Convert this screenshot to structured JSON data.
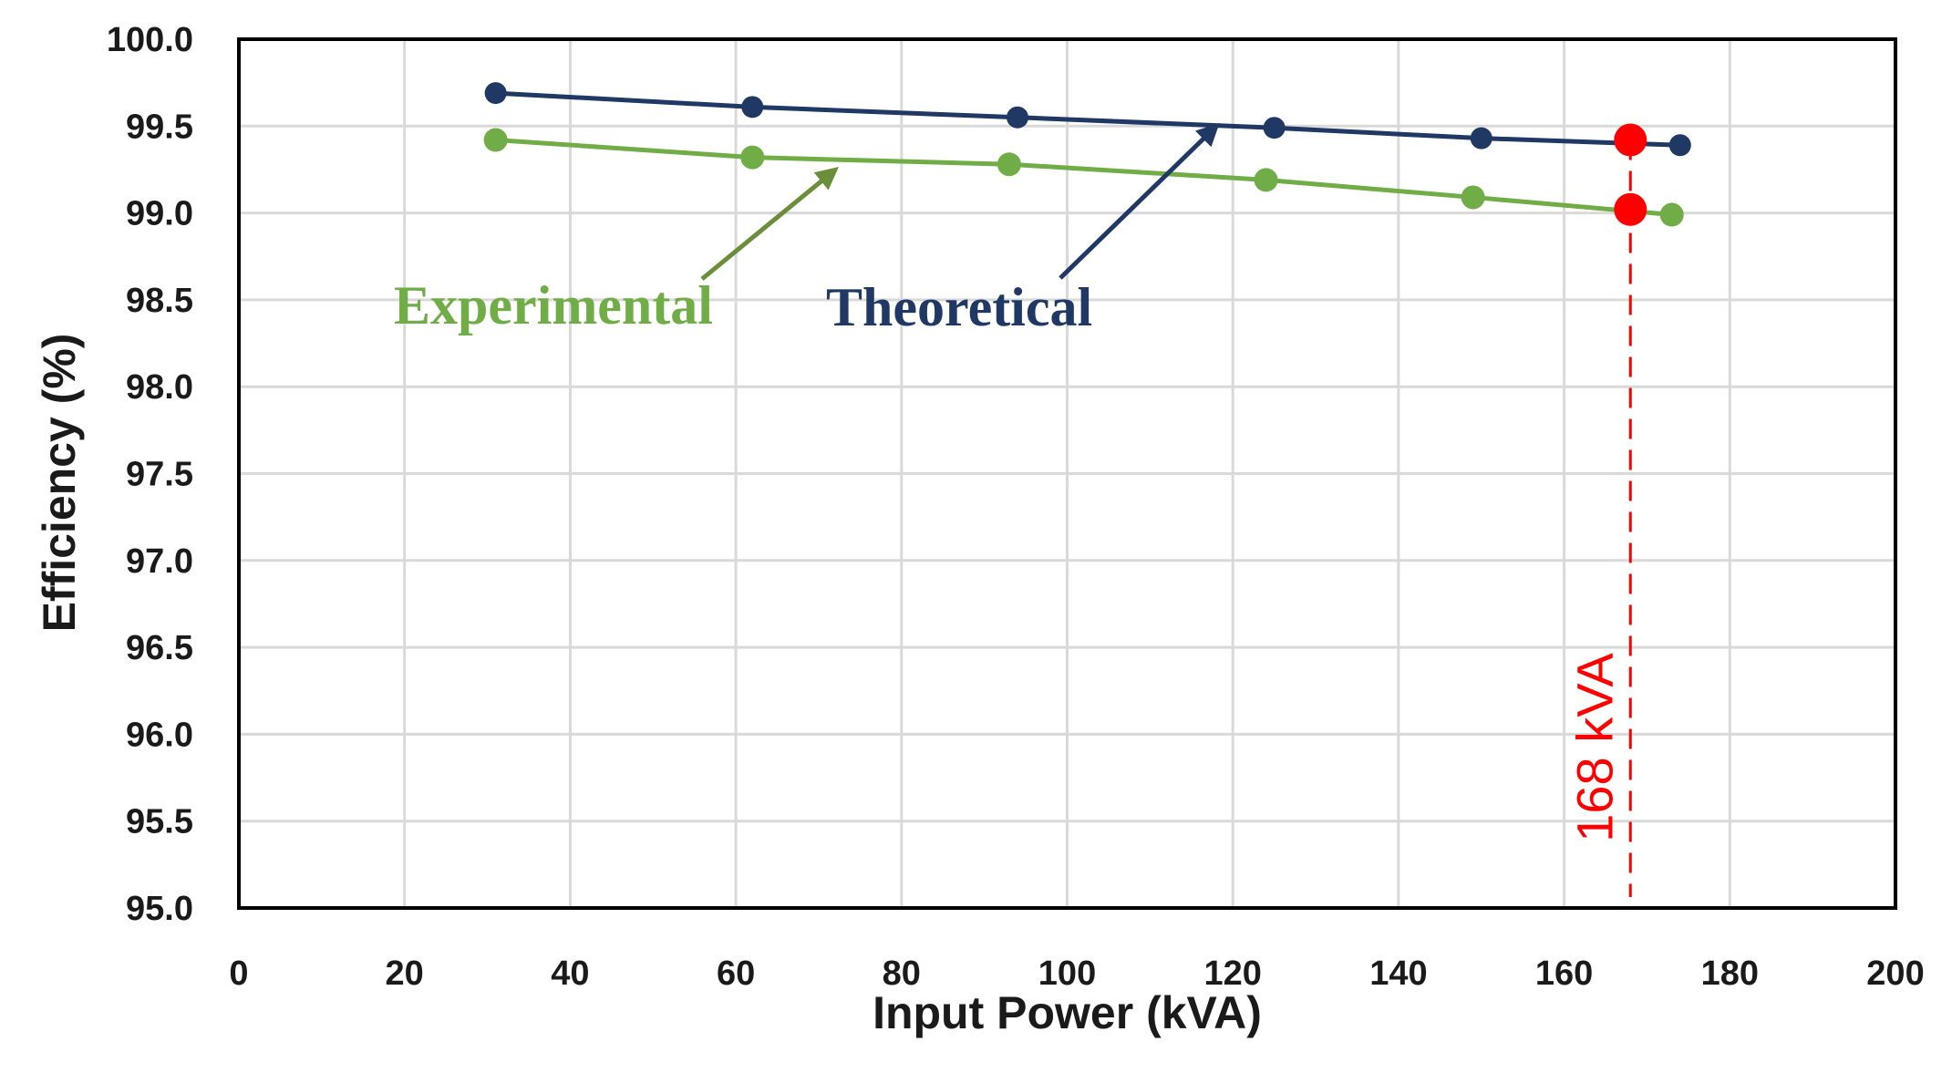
{
  "chart_data": {
    "type": "line",
    "title": "",
    "xlabel": "Input Power (kVA)",
    "ylabel": "Efficiency (%)",
    "xlim": [
      0,
      200
    ],
    "ylim": [
      95.0,
      100.0
    ],
    "xticks": [
      "0",
      "20",
      "40",
      "60",
      "80",
      "100",
      "120",
      "140",
      "160",
      "180",
      "200"
    ],
    "yticks": [
      "95.0",
      "95.5",
      "96.0",
      "96.5",
      "97.0",
      "97.5",
      "98.0",
      "98.5",
      "99.0",
      "99.5",
      "100.0"
    ],
    "grid": true,
    "series": [
      {
        "name": "Theoretical",
        "color": "#1f3864",
        "x": [
          31,
          62,
          94,
          125,
          150,
          174
        ],
        "y": [
          99.69,
          99.61,
          99.55,
          99.49,
          99.43,
          99.39
        ]
      },
      {
        "name": "Experimental",
        "color": "#70ad47",
        "x": [
          31,
          62,
          93,
          124,
          149,
          173
        ],
        "y": [
          99.42,
          99.32,
          99.28,
          99.19,
          99.09,
          98.99
        ]
      }
    ],
    "annotations": [
      {
        "text": "Experimental",
        "color": "#70ad47",
        "arrow_color": "#6b8e3a",
        "arrow_to": [
          72,
          99.28
        ]
      },
      {
        "text": "Theoretical",
        "color": "#1f3864",
        "arrow_color": "#1f3864",
        "arrow_to": [
          118,
          99.52
        ]
      }
    ],
    "marker": {
      "x": 168,
      "label": "168 kVA",
      "color": "#ff0000",
      "points_y": [
        99.42,
        99.02
      ]
    }
  }
}
